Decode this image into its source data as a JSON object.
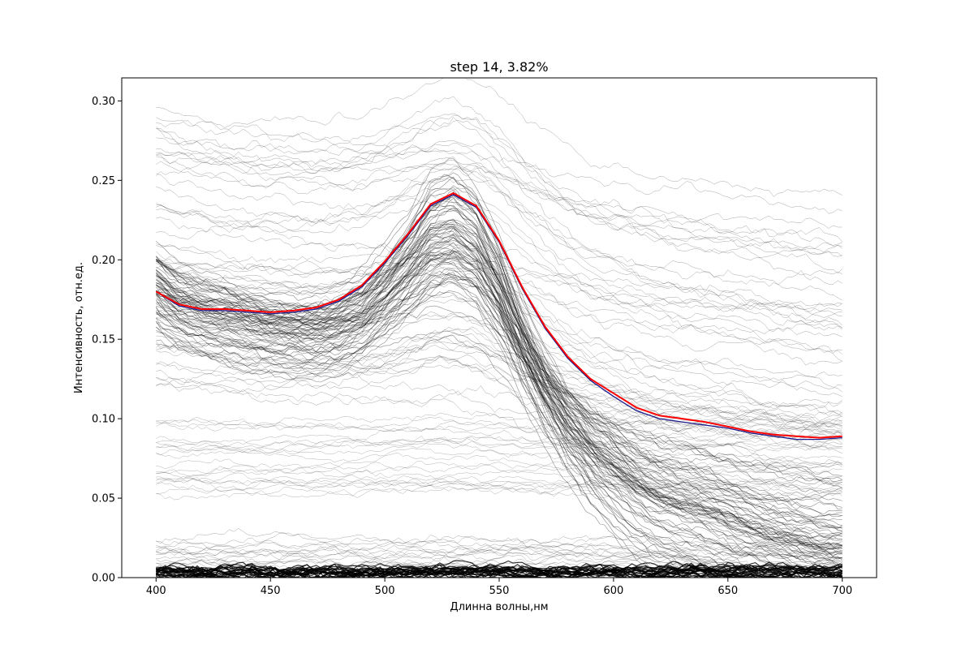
{
  "chart_data": {
    "type": "line",
    "title": "step 14, 3.82%",
    "xlabel": "Длинна волны,нм",
    "ylabel": "Интенсивность, отн.ед.",
    "xlim": [
      385,
      715
    ],
    "ylim": [
      0.0,
      0.3145
    ],
    "x_ticks": [
      400,
      450,
      500,
      550,
      600,
      650,
      700
    ],
    "x_tick_labels": [
      "400",
      "450",
      "500",
      "550",
      "600",
      "650",
      "700"
    ],
    "y_ticks": [
      0.0,
      0.05,
      0.1,
      0.15,
      0.2,
      0.25,
      0.3
    ],
    "y_tick_labels": [
      "0.00",
      "0.05",
      "0.10",
      "0.15",
      "0.20",
      "0.25",
      "0.30"
    ],
    "grid": false,
    "legend": "none",
    "colors": {
      "background_curves": "#000000",
      "reference_curve": "#1a1a8c",
      "fitted_curve": "#ff0000"
    },
    "series": [
      {
        "color": "red",
        "x": [
          400,
          410,
          420,
          430,
          440,
          450,
          460,
          470,
          480,
          490,
          500,
          510,
          520,
          530,
          540,
          550,
          560,
          570,
          580,
          590,
          600,
          610,
          620,
          630,
          640,
          650,
          660,
          670,
          680,
          690,
          700
        ],
        "values": [
          0.18,
          0.172,
          0.169,
          0.169,
          0.168,
          0.167,
          0.168,
          0.17,
          0.175,
          0.184,
          0.199,
          0.216,
          0.235,
          0.242,
          0.234,
          0.212,
          0.183,
          0.158,
          0.139,
          0.125,
          0.116,
          0.107,
          0.102,
          0.1,
          0.098,
          0.095,
          0.092,
          0.09,
          0.089,
          0.088,
          0.089
        ]
      },
      {
        "color": "blue",
        "x": [
          400,
          410,
          420,
          430,
          440,
          450,
          460,
          470,
          480,
          490,
          500,
          510,
          520,
          530,
          540,
          550,
          560,
          570,
          580,
          590,
          600,
          610,
          620,
          630,
          640,
          650,
          660,
          670,
          680,
          690,
          700
        ],
        "values": [
          0.18,
          0.171,
          0.168,
          0.168,
          0.167,
          0.166,
          0.167,
          0.169,
          0.174,
          0.183,
          0.198,
          0.215,
          0.234,
          0.241,
          0.233,
          0.211,
          0.182,
          0.157,
          0.138,
          0.124,
          0.114,
          0.105,
          0.1,
          0.098,
          0.096,
          0.094,
          0.091,
          0.089,
          0.087,
          0.087,
          0.088
        ]
      }
    ]
  }
}
